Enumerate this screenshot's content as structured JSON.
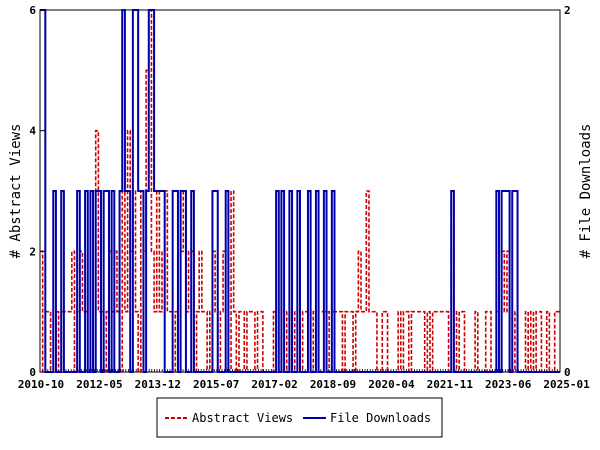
{
  "chart_data": {
    "type": "line",
    "title": "",
    "xlabel": "",
    "x_tick_labels": [
      "2010-10",
      "2012-05",
      "2013-12",
      "2015-07",
      "2017-02",
      "2018-09",
      "2020-04",
      "2021-11",
      "2023-06",
      "2025-01"
    ],
    "left_axis": {
      "label": "# Abstract Views",
      "ticks": [
        "0",
        "2",
        "4",
        "6"
      ],
      "range": [
        0,
        6
      ]
    },
    "right_axis": {
      "label": "# File Downloads",
      "ticks": [
        "0",
        "2"
      ],
      "range": [
        0,
        2
      ]
    },
    "legend": {
      "placement": "bottom-center"
    },
    "series": [
      {
        "name": "Abstract Views",
        "axis": "left",
        "color": "#cc0000",
        "style": "dashed",
        "values": [
          2,
          0,
          1,
          1,
          0,
          0,
          1,
          0,
          1,
          1,
          1,
          1,
          2,
          0,
          1,
          2,
          1,
          1,
          1,
          0,
          3,
          4,
          1,
          1,
          0,
          1,
          2,
          1,
          2,
          1,
          0,
          3,
          1,
          4,
          2,
          3,
          1,
          0,
          3,
          2,
          5,
          6,
          2,
          1,
          3,
          1,
          2,
          3,
          1,
          1,
          0,
          1,
          2,
          2,
          3,
          1,
          2,
          2,
          0,
          1,
          2,
          1,
          1,
          0,
          1,
          2,
          1,
          0,
          1,
          2,
          2,
          0,
          3,
          1,
          0,
          1,
          1,
          0,
          1,
          1,
          1,
          0,
          1,
          1,
          0,
          0,
          0,
          0,
          1,
          0,
          0,
          0,
          0,
          1,
          0,
          1,
          0,
          1,
          0,
          1,
          1,
          1,
          0,
          1,
          0,
          1,
          1,
          1,
          1,
          0,
          1,
          1,
          1,
          1,
          0,
          1,
          1,
          1,
          0,
          1,
          2,
          1,
          1,
          3,
          1,
          1,
          1,
          0,
          0,
          1,
          1,
          0,
          0,
          0,
          0,
          1,
          0,
          1,
          1,
          0,
          1,
          1,
          1,
          1,
          1,
          0,
          1,
          0,
          1,
          1,
          1,
          1,
          1,
          1,
          0,
          3,
          1,
          0,
          1,
          1,
          0,
          0,
          0,
          0,
          1,
          0,
          0,
          0,
          1,
          1,
          0,
          0,
          1,
          2,
          2,
          1,
          2,
          0,
          0,
          1,
          0,
          0,
          0,
          1,
          0,
          1,
          0,
          1,
          1,
          0,
          0,
          1,
          0,
          0,
          1,
          1
        ]
      },
      {
        "name": "File Downloads",
        "axis": "right",
        "color": "#0000aa",
        "style": "solid",
        "values": [
          2,
          2,
          0,
          0,
          0,
          1,
          0,
          0,
          1,
          0,
          0,
          0,
          0,
          0,
          1,
          0,
          0,
          1,
          0,
          1,
          0,
          1,
          1,
          0,
          1,
          1,
          0,
          1,
          0,
          0,
          1,
          2,
          1,
          1,
          0,
          2,
          2,
          1,
          1,
          0,
          1,
          2,
          2,
          1,
          1,
          1,
          1,
          0,
          0,
          0,
          1,
          1,
          0,
          1,
          1,
          0,
          0,
          1,
          0,
          0,
          0,
          0,
          0,
          0,
          0,
          1,
          1,
          0,
          0,
          0,
          1,
          0,
          0,
          0,
          0,
          0,
          0,
          0,
          0,
          0,
          0,
          0,
          0,
          0,
          0,
          0,
          0,
          0,
          0,
          1,
          0,
          1,
          0,
          0,
          1,
          0,
          0,
          1,
          0,
          0,
          0,
          1,
          0,
          0,
          1,
          0,
          0,
          1,
          0,
          0,
          1,
          0,
          0,
          0,
          0,
          0,
          0,
          0,
          0,
          0,
          0,
          0,
          0,
          0,
          0,
          0,
          0,
          0,
          0,
          0,
          0,
          0,
          0,
          0,
          0,
          0,
          0,
          0,
          0,
          0,
          0,
          0,
          0,
          0,
          0,
          0,
          0,
          0,
          0,
          0,
          0,
          0,
          0,
          0,
          0,
          1,
          0,
          0,
          0,
          0,
          0,
          0,
          0,
          0,
          0,
          0,
          0,
          0,
          0,
          0,
          0,
          0,
          1,
          0,
          1,
          1,
          1,
          0,
          1,
          1,
          0,
          0,
          0,
          0,
          0,
          0,
          0,
          0,
          0,
          0,
          0,
          0,
          0,
          0,
          0,
          0
        ]
      }
    ]
  }
}
